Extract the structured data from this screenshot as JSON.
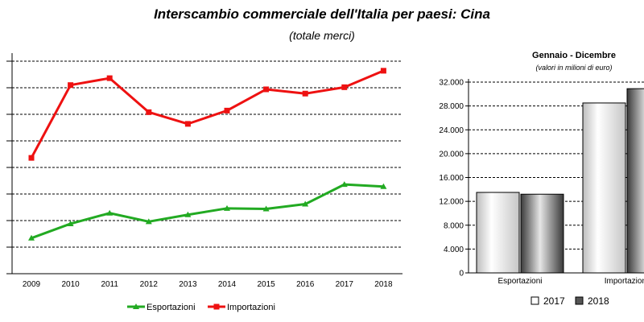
{
  "title": "Interscambio commerciale dell'Italia per paesi: Cina",
  "subtitle": "(totale merci)",
  "colors": {
    "export": "#22aa22",
    "import": "#ee1111"
  },
  "chart_data": [
    {
      "type": "line",
      "x": [
        "2009",
        "2010",
        "2011",
        "2012",
        "2013",
        "2014",
        "2015",
        "2016",
        "2017",
        "2018"
      ],
      "series": [
        {
          "name": "Esportazioni",
          "values": [
            6.7,
            9.4,
            11.4,
            9.8,
            11.1,
            12.3,
            12.2,
            13.1,
            16.8,
            16.4
          ]
        },
        {
          "name": "Importazioni",
          "values": [
            21.8,
            35.5,
            36.8,
            30.4,
            28.2,
            30.7,
            34.7,
            33.9,
            35.1,
            38.2
          ]
        }
      ],
      "ylim": [
        0,
        40
      ],
      "grid": true,
      "legend": "bottom"
    },
    {
      "type": "bar",
      "title": "Gennaio - Dicembre",
      "subtitle": "(valori in milioni di euro)",
      "categories": [
        "Esportazioni",
        "Importazioni"
      ],
      "series": [
        {
          "name": "2017",
          "values": [
            13500,
            28500
          ]
        },
        {
          "name": "2018",
          "values": [
            13200,
            30900
          ]
        }
      ],
      "yticks": [
        "0",
        "4.000",
        "8.000",
        "12.000",
        "16.000",
        "20.000",
        "24.000",
        "28.000",
        "32.000"
      ],
      "ylim": [
        0,
        32000
      ],
      "grid": true,
      "legend": "bottom"
    }
  ]
}
